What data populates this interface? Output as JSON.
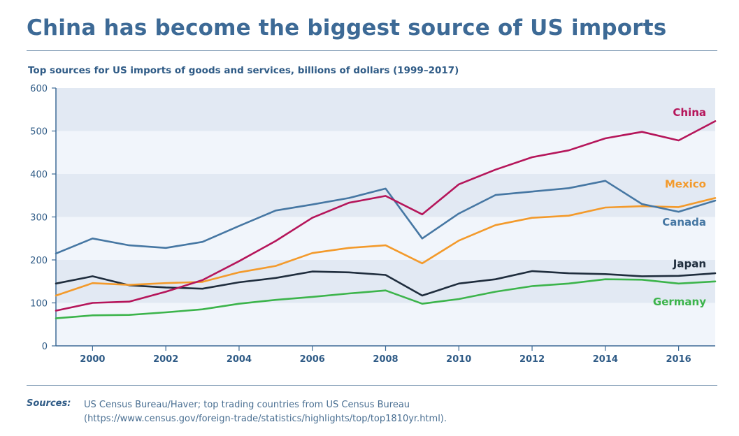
{
  "title": "China has become the biggest source of US imports",
  "subtitle": "Top sources for US imports of goods and services, billions of dollars (1999–2017)",
  "sources": {
    "label": "Sources:",
    "line1": "US Census Bureau/Haver; top trading countries from US Census Bureau",
    "line2": "(https://www.census.gov/foreign-trade/statistics/highlights/top/top1810yr.html)."
  },
  "chart_data": {
    "type": "line",
    "x": [
      1999,
      2000,
      2001,
      2002,
      2003,
      2004,
      2005,
      2006,
      2007,
      2008,
      2009,
      2010,
      2011,
      2012,
      2013,
      2014,
      2015,
      2016,
      2017
    ],
    "xlim": [
      1999,
      2017
    ],
    "ylim": [
      0,
      600
    ],
    "x_ticks": [
      2000,
      2002,
      2004,
      2006,
      2008,
      2010,
      2012,
      2014,
      2016
    ],
    "y_ticks": [
      0,
      100,
      200,
      300,
      400,
      500,
      600
    ],
    "grid": "alternating horizontal bands",
    "series": [
      {
        "name": "China",
        "color": "#b5155a",
        "values": [
          82,
          100,
          103,
          126,
          153,
          197,
          244,
          298,
          333,
          349,
          306,
          376,
          410,
          439,
          455,
          483,
          498,
          478,
          523
        ]
      },
      {
        "name": "Mexico",
        "color": "#f39a2b",
        "values": [
          117,
          146,
          142,
          146,
          149,
          171,
          186,
          216,
          228,
          234,
          192,
          245,
          281,
          298,
          303,
          322,
          325,
          323,
          344
        ]
      },
      {
        "name": "Canada",
        "color": "#4677a3",
        "values": [
          215,
          250,
          234,
          228,
          242,
          279,
          315,
          329,
          344,
          366,
          250,
          308,
          351,
          359,
          367,
          384,
          330,
          312,
          338
        ]
      },
      {
        "name": "Japan",
        "color": "#1f2d3d",
        "values": [
          145,
          162,
          141,
          136,
          133,
          148,
          158,
          173,
          171,
          165,
          117,
          145,
          155,
          174,
          169,
          167,
          162,
          163,
          169
        ]
      },
      {
        "name": "Germany",
        "color": "#3cb44b",
        "values": [
          64,
          71,
          72,
          78,
          85,
          98,
          107,
          114,
          122,
          129,
          98,
          109,
          126,
          139,
          145,
          155,
          154,
          145,
          150
        ]
      }
    ]
  }
}
